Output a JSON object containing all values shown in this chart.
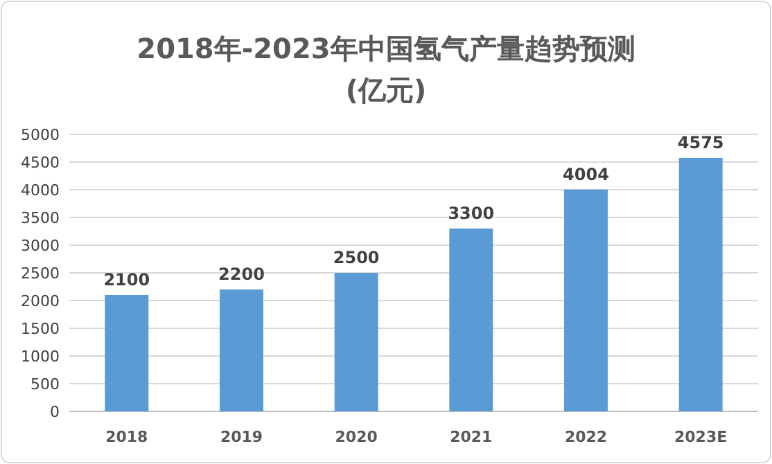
{
  "chart_data": {
    "type": "bar",
    "title": "2018年-2023年中国氢气产量趋势预测",
    "subtitle": "(亿元)",
    "categories": [
      "2018",
      "2019",
      "2020",
      "2021",
      "2022",
      "2023E"
    ],
    "values": [
      2100,
      2200,
      2500,
      3300,
      4004,
      4575
    ],
    "color": "#5b9bd5",
    "ylim": [
      0,
      5000
    ],
    "yticks": [
      0,
      500,
      1000,
      1500,
      2000,
      2500,
      3000,
      3500,
      4000,
      4500,
      5000
    ],
    "grid": "y",
    "data_labels": true
  }
}
